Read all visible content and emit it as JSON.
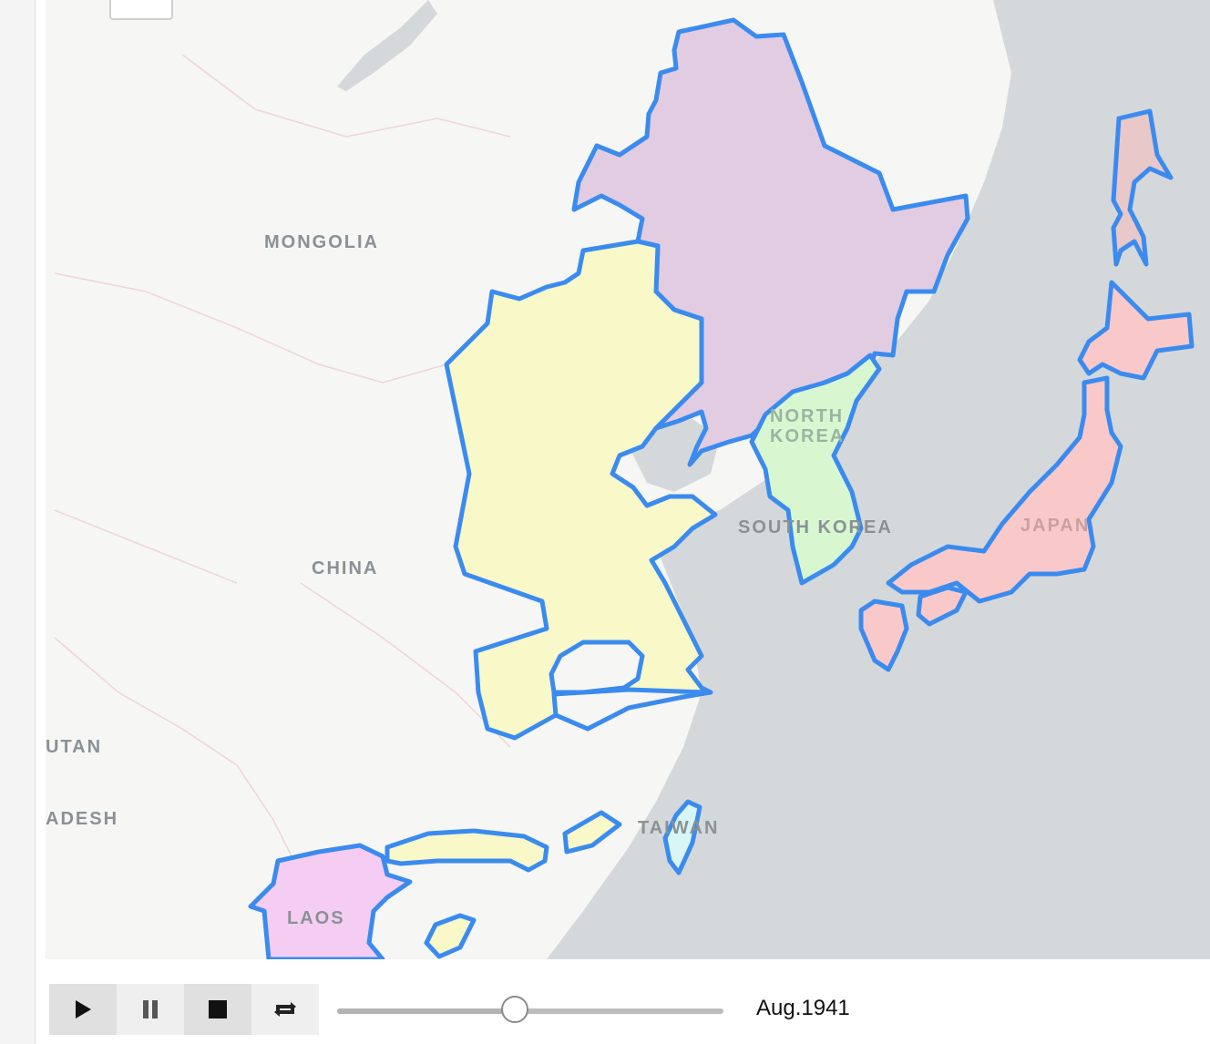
{
  "map": {
    "labels": {
      "mongolia": "MONGOLIA",
      "china": "CHINA",
      "north_korea_1": "NORTH",
      "north_korea_2": "KOREA",
      "south_korea": "SOUTH KOREA",
      "japan": "JAPAN",
      "taiwan": "TAIWAN",
      "laos": "LAOS",
      "bhutan_partial": "UTAN",
      "bangladesh_partial": "ADESH"
    },
    "colors": {
      "water": "#d4d8da",
      "land": "#f6f6f4",
      "outline": "#3b8bef",
      "occupied_china": "#f8f8c8",
      "manchukuo": "#e2cce1",
      "korea": "#d8f7d1",
      "japan": "#f9c9c9",
      "laos": "#f5cdf2",
      "taiwan": "#d9f6f6"
    }
  },
  "controls": {
    "play_icon": "play-icon",
    "pause_icon": "pause-icon",
    "stop_icon": "stop-icon",
    "loop_icon": "loop-icon",
    "timeline_progress": 0.46,
    "current_date": "Aug.1941"
  }
}
